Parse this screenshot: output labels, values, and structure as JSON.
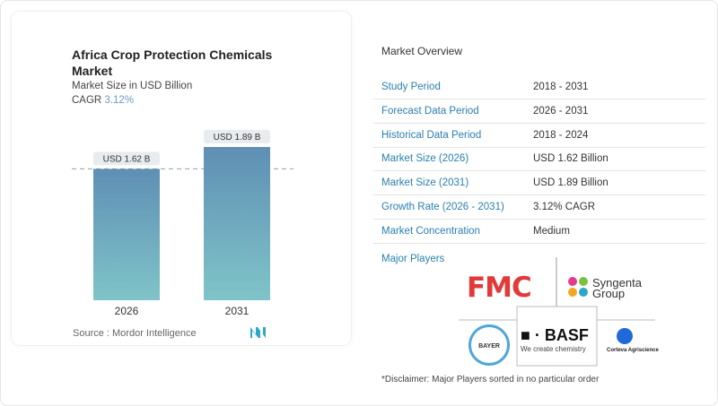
{
  "chart_data": {
    "type": "bar",
    "title": "Africa Crop Protection Chemicals Market",
    "subtitle": "Market Size in USD Billion",
    "cagr_label": "CAGR",
    "cagr_value": "3.12%",
    "categories": [
      "2026",
      "2031"
    ],
    "values": [
      1.62,
      1.89
    ],
    "data_labels": [
      "USD 1.62 B",
      "USD 1.89 B"
    ],
    "ylim": [
      0,
      1.89
    ],
    "grid": false,
    "bar_colors": [
      "#5f8fb4",
      "#7fc4c8"
    ],
    "source": "Source :  Mordor Intelligence"
  },
  "overview": {
    "title": "Market Overview",
    "rows": [
      {
        "label": "Study Period",
        "value": "2018 - 2031"
      },
      {
        "label": "Forecast Data Period",
        "value": "2026 - 2031"
      },
      {
        "label": "Historical Data Period",
        "value": "2018 - 2024"
      },
      {
        "label": "Market Size (2026)",
        "value": "USD 1.62 Billion"
      },
      {
        "label": "Market Size (2031)",
        "value": "USD 1.89 Billion"
      },
      {
        "label": "Growth Rate (2026 - 2031)",
        "value": "3.12% CAGR"
      },
      {
        "label": "Market Concentration",
        "value": "Medium"
      }
    ],
    "major_players_label": "Major Players",
    "players": [
      "FMC",
      "Syngenta Group",
      "BAYER",
      "BASF",
      "Corteva Agriscience"
    ],
    "basf_tagline": "We create chemistry",
    "disclaimer": "*Disclaimer: Major Players sorted in no particular order"
  }
}
